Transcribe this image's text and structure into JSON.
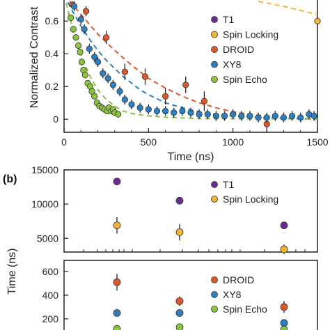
{
  "colors": {
    "T1": "#6a2c8e",
    "Spin Locking": "#f2b632",
    "DROID": "#e0572a",
    "XY8": "#2a7fc1",
    "Spin Echo": "#8cc63f",
    "axis": "#222222"
  },
  "chart_data": [
    {
      "panel": "a",
      "type": "scatter",
      "xlabel": "Time (ns)",
      "ylabel": "Normalized Contrast",
      "xlim": [
        0,
        1500
      ],
      "ylim": [
        -0.08,
        0.75
      ],
      "xticks": [
        "0",
        "500",
        "1000",
        "1500"
      ],
      "yticks": [
        "0",
        "0.2",
        "0.4",
        "0.6"
      ],
      "legend": [
        "T1",
        "Spin Locking",
        "DROID",
        "XY8",
        "Spin Echo"
      ],
      "legend_position": "right",
      "series": [
        {
          "name": "Spin Locking",
          "points": [
            [
              1500,
              0.6
            ]
          ],
          "fit": [
            [
              1150,
              0.72
            ],
            [
              1300,
              0.69
            ],
            [
              1500,
              0.64
            ]
          ]
        },
        {
          "name": "DROID",
          "points": [
            [
              50,
              0.7
            ],
            [
              130,
              0.66
            ],
            [
              250,
              0.5
            ],
            [
              360,
              0.29
            ],
            [
              480,
              0.26
            ],
            [
              600,
              0.14
            ],
            [
              720,
              0.21
            ],
            [
              830,
              0.11
            ],
            [
              1200,
              -0.03
            ]
          ],
          "errors": [
            0.02,
            0.03,
            0.04,
            0.05,
            0.05,
            0.05,
            0.05,
            0.06,
            0.05
          ],
          "fit": [
            [
              0,
              0.76
            ],
            [
              100,
              0.64
            ],
            [
              200,
              0.52
            ],
            [
              300,
              0.42
            ],
            [
              400,
              0.33
            ],
            [
              500,
              0.25
            ],
            [
              600,
              0.19
            ],
            [
              700,
              0.14
            ],
            [
              800,
              0.1
            ],
            [
              900,
              0.07
            ],
            [
              1000,
              0.045
            ],
            [
              1100,
              0.03
            ],
            [
              1200,
              0.02
            ],
            [
              1300,
              0.01
            ],
            [
              1400,
              0.005
            ],
            [
              1500,
              0.0
            ]
          ]
        },
        {
          "name": "XY8",
          "points": [
            [
              60,
              0.69
            ],
            [
              100,
              0.61
            ],
            [
              120,
              0.55
            ],
            [
              150,
              0.43
            ],
            [
              180,
              0.38
            ],
            [
              200,
              0.35
            ],
            [
              230,
              0.28
            ],
            [
              260,
              0.25
            ],
            [
              290,
              0.21
            ],
            [
              330,
              0.17
            ],
            [
              360,
              0.12
            ],
            [
              400,
              0.09
            ],
            [
              450,
              0.07
            ],
            [
              500,
              0.06
            ],
            [
              550,
              0.05
            ],
            [
              600,
              0.05
            ],
            [
              650,
              0.04
            ],
            [
              700,
              0.05
            ],
            [
              750,
              0.04
            ],
            [
              800,
              0.03
            ],
            [
              850,
              0.03
            ],
            [
              900,
              0.02
            ],
            [
              950,
              0.02
            ],
            [
              1000,
              0.03
            ],
            [
              1050,
              0.02
            ],
            [
              1100,
              0.02
            ],
            [
              1150,
              0.01
            ],
            [
              1200,
              0.01
            ],
            [
              1250,
              0.02
            ],
            [
              1300,
              0.01
            ],
            [
              1350,
              0.02
            ],
            [
              1400,
              0.01
            ],
            [
              1450,
              0.03
            ],
            [
              1480,
              0.02
            ]
          ],
          "errors": [
            0.03,
            0.03,
            0.03,
            0.03,
            0.03,
            0.03,
            0.03,
            0.03,
            0.03,
            0.03,
            0.03,
            0.03,
            0.03,
            0.03,
            0.03,
            0.03,
            0.03,
            0.03,
            0.03,
            0.03,
            0.03,
            0.03,
            0.03,
            0.03,
            0.03,
            0.03,
            0.03,
            0.03,
            0.03,
            0.03,
            0.03,
            0.03,
            0.03,
            0.03
          ],
          "fit": [
            [
              0,
              0.76
            ],
            [
              50,
              0.66
            ],
            [
              100,
              0.57
            ],
            [
              150,
              0.49
            ],
            [
              200,
              0.42
            ],
            [
              250,
              0.36
            ],
            [
              300,
              0.31
            ],
            [
              350,
              0.26
            ],
            [
              400,
              0.22
            ],
            [
              450,
              0.18
            ],
            [
              500,
              0.15
            ],
            [
              600,
              0.1
            ],
            [
              700,
              0.07
            ],
            [
              800,
              0.045
            ],
            [
              900,
              0.03
            ],
            [
              1000,
              0.02
            ],
            [
              1200,
              0.008
            ],
            [
              1500,
              0.0
            ]
          ]
        },
        {
          "name": "Spin Echo",
          "points": [
            [
              40,
              0.62
            ],
            [
              55,
              0.55
            ],
            [
              70,
              0.5
            ],
            [
              85,
              0.45
            ],
            [
              95,
              0.41
            ],
            [
              105,
              0.35
            ],
            [
              115,
              0.3
            ],
            [
              125,
              0.27
            ],
            [
              140,
              0.22
            ],
            [
              155,
              0.2
            ],
            [
              165,
              0.17
            ],
            [
              180,
              0.14
            ],
            [
              195,
              0.1
            ],
            [
              210,
              0.08
            ],
            [
              225,
              0.07
            ],
            [
              240,
              0.06
            ],
            [
              255,
              0.05
            ],
            [
              265,
              0.07
            ],
            [
              280,
              0.05
            ],
            [
              290,
              0.06
            ],
            [
              300,
              0.04
            ],
            [
              320,
              0.03
            ]
          ],
          "errors": [
            0.02,
            0.02,
            0.02,
            0.02,
            0.02,
            0.02,
            0.02,
            0.02,
            0.02,
            0.02,
            0.02,
            0.02,
            0.02,
            0.02,
            0.02,
            0.02,
            0.02,
            0.02,
            0.02,
            0.02,
            0.02,
            0.02
          ],
          "fit": [
            [
              0,
              0.76
            ],
            [
              40,
              0.6
            ],
            [
              80,
              0.46
            ],
            [
              120,
              0.34
            ],
            [
              160,
              0.25
            ],
            [
              200,
              0.18
            ],
            [
              250,
              0.12
            ],
            [
              300,
              0.08
            ],
            [
              350,
              0.05
            ],
            [
              400,
              0.035
            ],
            [
              500,
              0.02
            ],
            [
              600,
              0.012
            ],
            [
              800,
              0.004
            ],
            [
              1500,
              0.0
            ]
          ]
        }
      ]
    },
    {
      "panel": "b-top",
      "type": "scatter",
      "panel_label": "(b)",
      "ylabel": "Time (ns)",
      "ylim": [
        3000,
        15000
      ],
      "yticks": [
        "15000",
        "10000",
        "5000"
      ],
      "xscale": "log",
      "legend": [
        "T1",
        "Spin Locking"
      ],
      "legend_position": "top-right",
      "series": [
        {
          "name": "T1",
          "points": [
            [
              1,
              13300
            ],
            [
              2,
              10500
            ],
            [
              3,
              6900
            ]
          ],
          "errors": [
            500,
            500,
            400
          ]
        },
        {
          "name": "Spin Locking",
          "points": [
            [
              1,
              6900
            ],
            [
              2,
              5900
            ],
            [
              3,
              3400
            ]
          ],
          "errors": [
            1200,
            1200,
            700
          ]
        }
      ]
    },
    {
      "panel": "b-bottom",
      "type": "scatter",
      "yticks": [
        "600",
        "400",
        "200"
      ],
      "xscale": "log",
      "legend": [
        "DROID",
        "XY8",
        "Spin Echo"
      ],
      "legend_position": "right",
      "series": [
        {
          "name": "DROID",
          "points": [
            [
              1,
              510
            ],
            [
              2,
              350
            ],
            [
              3,
              300
            ]
          ],
          "errors": [
            70,
            40,
            50
          ]
        },
        {
          "name": "XY8",
          "points": [
            [
              1,
              250
            ],
            [
              2,
              250
            ],
            [
              3,
              165
            ]
          ],
          "errors": [
            20,
            20,
            20
          ]
        },
        {
          "name": "Spin Echo",
          "points": [
            [
              1,
              115
            ],
            [
              2,
              130
            ],
            [
              3,
              110
            ]
          ],
          "errors": [
            10,
            10,
            10
          ]
        }
      ]
    }
  ]
}
